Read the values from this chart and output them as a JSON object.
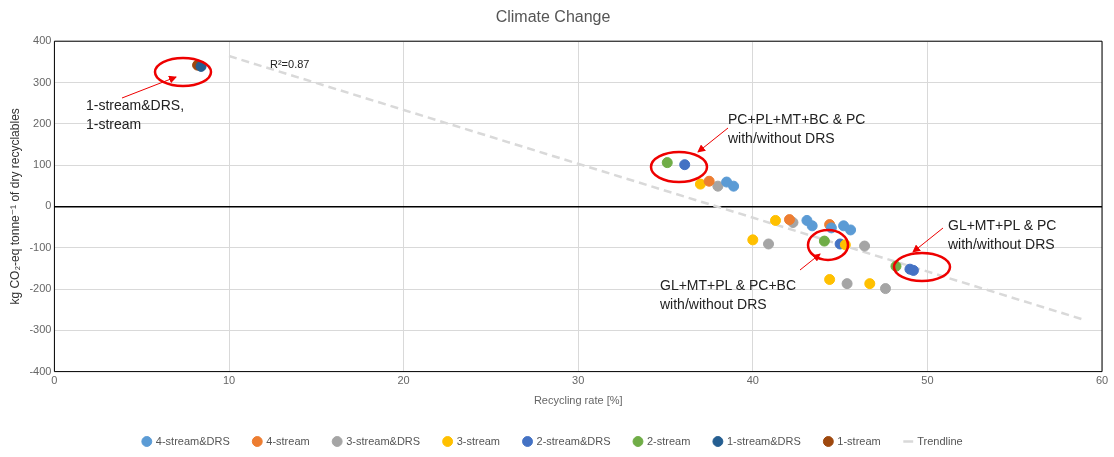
{
  "chart_data": {
    "type": "scatter",
    "title": "Climate Change",
    "xlabel": "Recycling rate [%]",
    "ylabel": "kg CO₂-eq tonne⁻¹ of dry recyclables",
    "xlim": [
      0,
      60
    ],
    "xticks": [
      0,
      10,
      20,
      30,
      40,
      50,
      60
    ],
    "ylim": [
      -400,
      400
    ],
    "yticks": [
      -400,
      -300,
      -200,
      -100,
      0,
      100,
      200,
      300,
      400
    ],
    "grid": true,
    "legend": "bottom",
    "marker": "circle",
    "series": [
      {
        "name": "4-stream&DRS",
        "color": "#5b9bd5",
        "x": [
          38.5,
          38.9,
          43.1,
          43.4,
          44.5,
          45.2,
          45.6
        ],
        "values": [
          59,
          49,
          -34,
          -47,
          -52,
          -47,
          -57
        ]
      },
      {
        "name": "4-stream",
        "color": "#ed7d31",
        "x": [
          37.5,
          42.1,
          44.4
        ],
        "values": [
          61,
          -32,
          -44
        ]
      },
      {
        "name": "3-stream&DRS",
        "color": "#a5a5a5",
        "x": [
          38.0,
          42.3,
          40.9,
          46.4,
          45.4,
          47.6
        ],
        "values": [
          49,
          -39,
          -91,
          -96,
          -187,
          -199
        ]
      },
      {
        "name": "3-stream",
        "color": "#ffc000",
        "x": [
          37.0,
          41.3,
          40.0,
          45.3,
          44.4,
          46.7
        ],
        "values": [
          54,
          -34,
          -81,
          -93,
          -177,
          -187
        ]
      },
      {
        "name": "2-stream&DRS",
        "color": "#4472c4",
        "x": [
          36.1,
          45.0,
          49.0,
          49.2
        ],
        "values": [
          101,
          -91,
          -152,
          -155
        ]
      },
      {
        "name": "2-stream",
        "color": "#70ad47",
        "x": [
          35.1,
          44.1,
          48.2
        ],
        "values": [
          106,
          -84,
          -145
        ]
      },
      {
        "name": "1-stream&DRS",
        "color": "#255e91",
        "x": [
          8.4
        ],
        "values": [
          339
        ]
      },
      {
        "name": "1-stream",
        "color": "#9e480e",
        "x": [
          8.2
        ],
        "values": [
          342
        ]
      },
      {
        "name": "Trendline",
        "type": "line",
        "line_style": "dashed",
        "marker": "none",
        "color": "#d9d9d9",
        "x": [
          10,
          59
        ],
        "values": [
          364,
          -275
        ]
      }
    ],
    "annotations": [
      "R²=0.87",
      "1-stream&DRS,\n1-stream",
      "PC+PL+MT+BC & PC\nwith/without DRS",
      "GL+MT+PL & PC+BC\nwith/without DRS",
      "GL+MT+PL & PC\nwith/without DRS"
    ]
  }
}
